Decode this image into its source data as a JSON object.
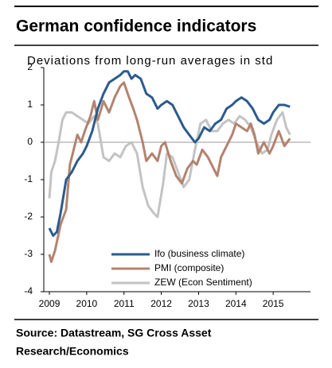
{
  "chart_data": {
    "type": "line",
    "title": "German confidence indicators",
    "subtitle": "Deviations from long-run averages in std",
    "source": [
      "Source: Datastream, SG Cross Asset",
      "Research/Economics"
    ],
    "xlim": [
      2008.85,
      2016
    ],
    "xticks": [
      2009,
      2010,
      2011,
      2012,
      2013,
      2014,
      2015
    ],
    "ylim": [
      -4,
      2
    ],
    "yticks": [
      -4,
      -3,
      -2,
      -1,
      0,
      1,
      2
    ],
    "legend": "bottom",
    "series": [
      {
        "name": "Ifo (business climate)",
        "color": "#2b5b8e",
        "x": [
          2009.0,
          2009.1,
          2009.2,
          2009.3,
          2009.45,
          2009.6,
          2009.75,
          2009.9,
          2010.0,
          2010.15,
          2010.3,
          2010.45,
          2010.6,
          2010.75,
          2010.9,
          2011.0,
          2011.1,
          2011.2,
          2011.3,
          2011.45,
          2011.6,
          2011.75,
          2011.9,
          2012.0,
          2012.15,
          2012.3,
          2012.45,
          2012.6,
          2012.75,
          2012.9,
          2013.0,
          2013.15,
          2013.3,
          2013.45,
          2013.6,
          2013.75,
          2013.9,
          2014.0,
          2014.15,
          2014.3,
          2014.45,
          2014.6,
          2014.75,
          2014.9,
          2015.0,
          2015.15,
          2015.3,
          2015.45
        ],
        "values": [
          -2.3,
          -2.5,
          -2.4,
          -1.9,
          -1.0,
          -0.8,
          -0.5,
          -0.3,
          -0.1,
          0.3,
          0.9,
          1.3,
          1.6,
          1.7,
          1.8,
          1.9,
          1.9,
          1.7,
          1.8,
          1.7,
          1.3,
          1.2,
          0.9,
          1.0,
          1.1,
          1.0,
          0.7,
          0.4,
          0.2,
          0.0,
          0.1,
          0.4,
          0.3,
          0.5,
          0.6,
          0.9,
          1.0,
          1.1,
          1.2,
          1.1,
          0.9,
          0.6,
          0.5,
          0.6,
          0.8,
          1.0,
          1.0,
          0.95
        ]
      },
      {
        "name": "PMI (composite)",
        "color": "#b3836f",
        "x": [
          2009.0,
          2009.05,
          2009.15,
          2009.3,
          2009.45,
          2009.55,
          2009.65,
          2009.75,
          2009.85,
          2009.95,
          2010.1,
          2010.2,
          2010.3,
          2010.45,
          2010.6,
          2010.75,
          2010.9,
          2011.0,
          2011.1,
          2011.25,
          2011.35,
          2011.5,
          2011.6,
          2011.75,
          2011.9,
          2012.0,
          2012.1,
          2012.25,
          2012.4,
          2012.55,
          2012.7,
          2012.85,
          2012.95,
          2013.1,
          2013.25,
          2013.4,
          2013.5,
          2013.6,
          2013.75,
          2013.9,
          2014.0,
          2014.15,
          2014.3,
          2014.4,
          2014.5,
          2014.6,
          2014.75,
          2014.9,
          2015.0,
          2015.15,
          2015.3,
          2015.45
        ],
        "values": [
          -3.0,
          -3.2,
          -2.9,
          -2.2,
          -1.8,
          -0.6,
          -0.2,
          0.2,
          0.0,
          0.3,
          0.7,
          1.1,
          0.6,
          1.1,
          0.8,
          1.2,
          1.5,
          1.6,
          1.3,
          0.9,
          0.6,
          0.0,
          -0.5,
          -0.3,
          -0.5,
          -0.1,
          0.0,
          -0.5,
          -0.9,
          -1.1,
          -0.7,
          -0.5,
          -0.6,
          -0.2,
          -0.4,
          -0.7,
          -0.9,
          -0.4,
          -0.1,
          0.2,
          0.5,
          0.4,
          0.3,
          0.5,
          0.2,
          -0.3,
          0.0,
          -0.3,
          -0.1,
          0.3,
          -0.1,
          0.1
        ]
      },
      {
        "name": "ZEW (Econ Sentiment)",
        "color": "#c3c3c3",
        "x": [
          2009.0,
          2009.05,
          2009.15,
          2009.25,
          2009.35,
          2009.45,
          2009.6,
          2009.75,
          2009.9,
          2010.05,
          2010.2,
          2010.3,
          2010.45,
          2010.6,
          2010.75,
          2010.9,
          2011.05,
          2011.2,
          2011.35,
          2011.5,
          2011.65,
          2011.8,
          2011.9,
          2012.05,
          2012.15,
          2012.3,
          2012.45,
          2012.6,
          2012.75,
          2012.9,
          2013.05,
          2013.2,
          2013.35,
          2013.5,
          2013.65,
          2013.8,
          2013.95,
          2014.1,
          2014.25,
          2014.4,
          2014.55,
          2014.7,
          2014.85,
          2014.95,
          2015.1,
          2015.25,
          2015.35,
          2015.45
        ],
        "values": [
          -1.5,
          -0.8,
          -0.5,
          0.0,
          0.6,
          0.8,
          0.8,
          0.7,
          0.6,
          0.5,
          0.7,
          0.5,
          -0.4,
          -0.5,
          -0.3,
          -0.4,
          -0.1,
          0.0,
          -0.3,
          -1.2,
          -1.7,
          -1.9,
          -2.0,
          -1.1,
          -0.3,
          -0.4,
          -0.8,
          -1.2,
          -1.0,
          -0.2,
          0.5,
          0.6,
          0.3,
          0.3,
          0.5,
          0.6,
          0.5,
          0.7,
          0.6,
          0.4,
          0.0,
          -0.3,
          -0.2,
          0.2,
          0.6,
          0.8,
          0.4,
          0.2
        ]
      }
    ]
  }
}
